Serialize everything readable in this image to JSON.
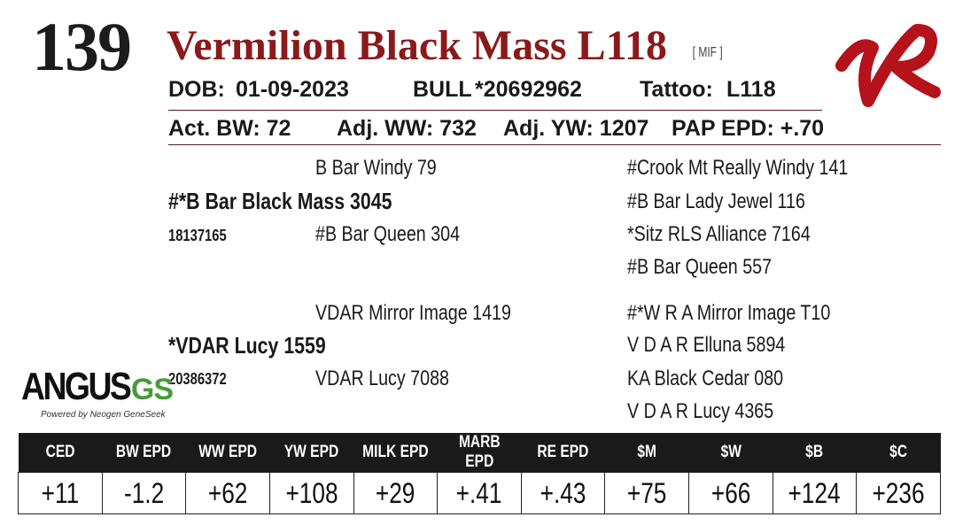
{
  "lot": "139",
  "title": "Vermilion Black Mass L118",
  "tag": "[ MIF ]",
  "dob_label": "DOB:",
  "dob": "01-09-2023",
  "sex": "BULL",
  "registration": "*20692962",
  "tattoo_label": "Tattoo:",
  "tattoo": "L118",
  "act_bw": "Act. BW: 72",
  "adj_ww": "Adj. WW: 732",
  "adj_yw": "Adj. YW: 1207",
  "pap_epd": "PAP EPD: +.70",
  "pedigree": {
    "sire": "#*B Bar Black Mass 3045",
    "sire_reg": "18137165",
    "sire_sire": "B Bar Windy 79",
    "sire_dam": "#B Bar Queen 304",
    "sss": "#Crook Mt Really Windy 141",
    "ssd": "#B Bar Lady Jewel 116",
    "sds": "*Sitz RLS Alliance 7164",
    "sdd": "#B Bar Queen 557",
    "dam": "*VDAR Lucy 1559",
    "dam_reg": "20386372",
    "dam_sire": "VDAR Mirror Image 1419",
    "dam_dam": "VDAR Lucy 7088",
    "dss": "#*W R A Mirror Image T10",
    "dsd": "V D A R Elluna 5894",
    "dds": "KA Black Cedar 080",
    "ddd": "V D A R Lucy 4365"
  },
  "angus_logo": {
    "word": "ANGUS",
    "gs": "GS",
    "powered": "Powered by Neogen GeneSeek"
  },
  "ranch_logo": {
    "icon": "vr-brand-icon",
    "color": "#b5121b"
  },
  "colors": {
    "title": "#8b1a1a",
    "header_bg": "#1a1a1a",
    "gs_green": "#4a9a3a"
  },
  "epd": {
    "headers": [
      "CED",
      "BW EPD",
      "WW EPD",
      "YW EPD",
      "MILK EPD",
      "MARB EPD",
      "RE EPD",
      "$M",
      "$W",
      "$B",
      "$C"
    ],
    "values": [
      "+11",
      "-1.2",
      "+62",
      "+108",
      "+29",
      "+.41",
      "+.43",
      "+75",
      "+66",
      "+124",
      "+236"
    ]
  }
}
